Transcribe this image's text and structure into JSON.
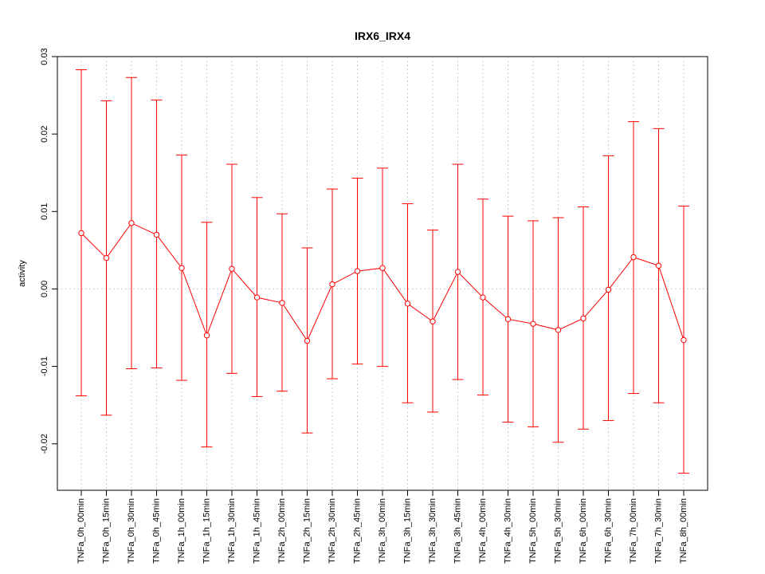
{
  "chart_data": {
    "type": "line",
    "title": "IRX6_IRX4",
    "xlabel": "",
    "ylabel": "activity",
    "ylim": [
      -0.026,
      0.03
    ],
    "yticks": [
      -0.02,
      -0.01,
      0.0,
      0.01,
      0.02,
      0.03
    ],
    "ytick_labels": [
      "-0.02",
      "-0.01",
      "0.00",
      "0.01",
      "0.02",
      "0.03"
    ],
    "grid": true,
    "series_color": "#ff0000",
    "grid_color": "#cccccc",
    "categories": [
      "TNFa_0h_00min",
      "TNFa_0h_15min",
      "TNFa_0h_30min",
      "TNFa_0h_45min",
      "TNFa_1h_00min",
      "TNFa_1h_15min",
      "TNFa_1h_30min",
      "TNFa_1h_45min",
      "TNFa_2h_00min",
      "TNFa_2h_15min",
      "TNFa_2h_30min",
      "TNFa_2h_45min",
      "TNFa_3h_00min",
      "TNFa_3h_15min",
      "TNFa_3h_30min",
      "TNFa_3h_45min",
      "TNFa_4h_00min",
      "TNFa_4h_30min",
      "TNFa_5h_00min",
      "TNFa_5h_30min",
      "TNFa_6h_00min",
      "TNFa_6h_30min",
      "TNFa_7h_00min",
      "TNFa_7h_30min",
      "TNFa_8h_00min"
    ],
    "values": [
      0.0072,
      0.004,
      0.0085,
      0.007,
      0.0027,
      -0.006,
      0.0026,
      -0.0011,
      -0.0018,
      -0.0067,
      0.0006,
      0.0023,
      0.0027,
      -0.0019,
      -0.0042,
      0.0022,
      -0.0011,
      -0.0039,
      -0.0045,
      -0.0053,
      -0.0038,
      -0.0001,
      0.0041,
      0.003,
      -0.0066
    ],
    "upper": [
      0.0283,
      0.0243,
      0.0273,
      0.0244,
      0.0173,
      0.0086,
      0.0161,
      0.0118,
      0.0097,
      0.0053,
      0.0129,
      0.0143,
      0.0156,
      0.011,
      0.0076,
      0.0161,
      0.0116,
      0.0094,
      0.0088,
      0.0092,
      0.0106,
      0.0172,
      0.0216,
      0.0207,
      0.0107
    ],
    "lower": [
      -0.0138,
      -0.0163,
      -0.0103,
      -0.0102,
      -0.0118,
      -0.0204,
      -0.0109,
      -0.0139,
      -0.0132,
      -0.0186,
      -0.0116,
      -0.0097,
      -0.01,
      -0.0147,
      -0.0159,
      -0.0117,
      -0.0137,
      -0.0172,
      -0.0178,
      -0.0198,
      -0.0181,
      -0.017,
      -0.0135,
      -0.0147,
      -0.0238
    ]
  }
}
